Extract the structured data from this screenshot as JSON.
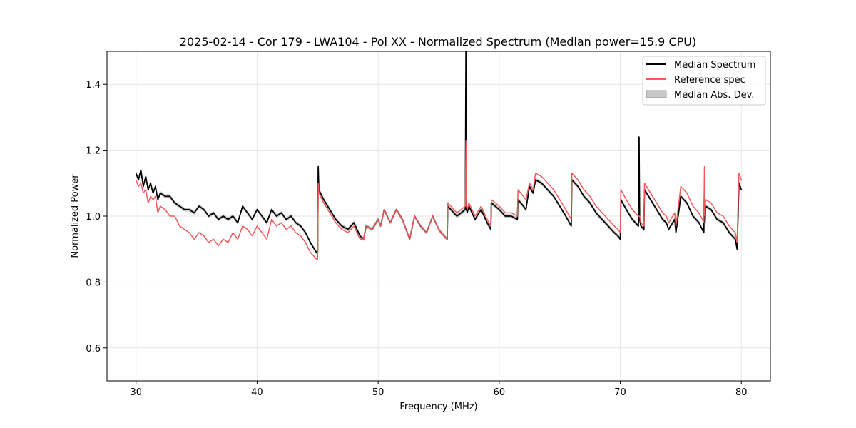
{
  "chart_data": {
    "type": "line",
    "title": "2025-02-14 - Cor 179 - LWA104 - Pol XX - Normalized Spectrum (Median power=15.9 CPU)",
    "xlabel": "Frequency (MHz)",
    "ylabel": "Normalized Power",
    "xlim": [
      27.6,
      82.4
    ],
    "ylim": [
      0.5,
      1.5
    ],
    "grid": true,
    "legend_position": "top-right",
    "xticks": [
      30,
      40,
      50,
      60,
      70,
      80
    ],
    "yticks": [
      0.6,
      0.8,
      1.0,
      1.2,
      1.4
    ],
    "xtick_labels": [
      "30",
      "40",
      "50",
      "60",
      "70",
      "80"
    ],
    "ytick_labels": [
      "0.6",
      "0.8",
      "1.0",
      "1.2",
      "1.4"
    ],
    "mad_width": 0.006,
    "series": [
      {
        "name": "Median Spectrum",
        "color": "#000000",
        "x": [
          30.0,
          30.2,
          30.4,
          30.6,
          30.8,
          31.0,
          31.2,
          31.4,
          31.6,
          31.8,
          32.0,
          32.4,
          32.8,
          33.2,
          33.6,
          34.0,
          34.4,
          34.8,
          35.2,
          35.6,
          36.0,
          36.4,
          36.8,
          37.2,
          37.6,
          38.0,
          38.4,
          38.8,
          39.2,
          39.6,
          40.0,
          40.4,
          40.8,
          41.2,
          41.6,
          42.0,
          42.4,
          42.8,
          43.2,
          43.6,
          44.0,
          44.4,
          44.9,
          45.0,
          45.05,
          45.1,
          45.5,
          46.0,
          46.5,
          47.0,
          47.5,
          48.0,
          48.5,
          48.8,
          49.0,
          49.5,
          50.0,
          50.2,
          50.5,
          51.0,
          51.5,
          52.0,
          52.6,
          53.0,
          53.5,
          54.0,
          54.5,
          55.0,
          55.2,
          55.7,
          55.75,
          56.5,
          57.2,
          57.25,
          57.3,
          57.35,
          57.5,
          58.0,
          58.5,
          59.0,
          59.3,
          59.35,
          60.0,
          60.5,
          61.0,
          61.5,
          61.55,
          62.0,
          62.2,
          62.5,
          62.8,
          63.0,
          63.5,
          64.0,
          64.5,
          65.0,
          65.5,
          65.95,
          66.0,
          66.5,
          67.0,
          67.5,
          68.0,
          68.5,
          69.0,
          69.5,
          69.8,
          70.0,
          70.05,
          70.5,
          71.0,
          71.5,
          71.55,
          71.6,
          71.65,
          71.7,
          71.95,
          72.0,
          72.5,
          73.0,
          73.5,
          73.8,
          74.0,
          74.5,
          74.6,
          75.0,
          75.5,
          76.0,
          76.5,
          76.9,
          76.95,
          77.0,
          77.05,
          77.5,
          78.0,
          78.5,
          79.0,
          79.5,
          79.6,
          79.65,
          79.8,
          80.0
        ],
        "y": [
          1.13,
          1.11,
          1.14,
          1.09,
          1.12,
          1.08,
          1.1,
          1.07,
          1.09,
          1.05,
          1.07,
          1.06,
          1.06,
          1.04,
          1.03,
          1.02,
          1.02,
          1.01,
          1.03,
          1.02,
          1.0,
          1.01,
          0.99,
          1.0,
          0.99,
          1.0,
          0.98,
          1.03,
          1.01,
          0.99,
          1.02,
          1.0,
          0.98,
          1.02,
          1.0,
          1.01,
          0.99,
          1.0,
          0.98,
          0.97,
          0.95,
          0.92,
          0.89,
          0.89,
          1.15,
          1.08,
          1.05,
          1.02,
          0.99,
          0.97,
          0.96,
          0.98,
          0.94,
          0.93,
          0.97,
          0.96,
          0.99,
          0.97,
          1.02,
          0.98,
          1.02,
          0.99,
          0.93,
          1.0,
          0.97,
          0.95,
          1.0,
          0.96,
          0.95,
          0.93,
          1.03,
          1.0,
          1.02,
          1.51,
          1.02,
          1.01,
          1.03,
          0.99,
          1.02,
          0.98,
          0.96,
          1.04,
          1.02,
          1.0,
          1.0,
          0.99,
          1.05,
          1.03,
          1.02,
          1.09,
          1.07,
          1.11,
          1.1,
          1.08,
          1.06,
          1.03,
          1.0,
          0.97,
          1.11,
          1.09,
          1.06,
          1.04,
          1.01,
          0.99,
          0.97,
          0.95,
          0.94,
          0.93,
          1.05,
          1.02,
          0.99,
          0.97,
          1.24,
          0.99,
          0.98,
          0.97,
          0.96,
          1.08,
          1.05,
          1.02,
          0.99,
          0.98,
          0.96,
          0.99,
          0.95,
          1.06,
          1.04,
          1.0,
          0.98,
          0.95,
          1.09,
          0.98,
          1.03,
          1.02,
          0.99,
          0.98,
          0.95,
          0.93,
          0.91,
          0.9,
          1.1,
          1.08
        ]
      },
      {
        "name": "Reference spec",
        "color": "#f05a5a",
        "x": [
          30.0,
          30.2,
          30.4,
          30.6,
          30.8,
          31.0,
          31.2,
          31.4,
          31.6,
          31.8,
          32.0,
          32.4,
          32.8,
          33.2,
          33.6,
          34.0,
          34.4,
          34.8,
          35.2,
          35.6,
          36.0,
          36.4,
          36.8,
          37.2,
          37.6,
          38.0,
          38.4,
          38.8,
          39.2,
          39.6,
          40.0,
          40.4,
          40.8,
          41.2,
          41.6,
          42.0,
          42.4,
          42.8,
          43.2,
          43.6,
          44.0,
          44.4,
          44.9,
          45.0,
          45.05,
          45.1,
          45.5,
          46.0,
          46.5,
          47.0,
          47.5,
          48.0,
          48.5,
          48.8,
          49.0,
          49.5,
          50.0,
          50.2,
          50.5,
          51.0,
          51.5,
          52.0,
          52.6,
          53.0,
          53.5,
          54.0,
          54.5,
          55.0,
          55.2,
          55.7,
          55.75,
          56.5,
          57.2,
          57.25,
          57.3,
          57.35,
          57.5,
          58.0,
          58.5,
          59.0,
          59.3,
          59.35,
          60.0,
          60.5,
          61.0,
          61.5,
          61.55,
          62.0,
          62.2,
          62.5,
          62.8,
          63.0,
          63.5,
          64.0,
          64.5,
          65.0,
          65.5,
          65.95,
          66.0,
          66.5,
          67.0,
          67.5,
          68.0,
          68.5,
          69.0,
          69.5,
          69.8,
          70.0,
          70.05,
          70.5,
          71.0,
          71.5,
          71.55,
          71.6,
          71.65,
          71.7,
          71.95,
          72.0,
          72.5,
          73.0,
          73.5,
          73.8,
          74.0,
          74.5,
          74.6,
          75.0,
          75.5,
          76.0,
          76.5,
          76.9,
          76.95,
          77.0,
          77.05,
          77.5,
          78.0,
          78.5,
          79.0,
          79.5,
          79.6,
          79.65,
          79.8,
          80.0
        ],
        "y": [
          1.11,
          1.09,
          1.1,
          1.07,
          1.08,
          1.04,
          1.06,
          1.05,
          1.06,
          1.01,
          1.03,
          1.02,
          1.0,
          1.0,
          0.97,
          0.96,
          0.95,
          0.93,
          0.95,
          0.94,
          0.92,
          0.93,
          0.91,
          0.93,
          0.92,
          0.95,
          0.93,
          0.97,
          0.96,
          0.94,
          0.97,
          0.95,
          0.93,
          0.99,
          0.97,
          0.98,
          0.96,
          0.97,
          0.95,
          0.94,
          0.92,
          0.89,
          0.87,
          0.87,
          1.1,
          1.07,
          1.04,
          1.01,
          0.98,
          0.96,
          0.95,
          0.97,
          0.93,
          0.93,
          0.97,
          0.96,
          0.99,
          0.97,
          1.02,
          0.98,
          1.02,
          0.99,
          0.93,
          1.0,
          0.97,
          0.95,
          1.0,
          0.96,
          0.95,
          0.93,
          1.04,
          1.01,
          1.03,
          1.23,
          1.03,
          1.02,
          1.04,
          1.0,
          1.03,
          0.99,
          0.97,
          1.05,
          1.03,
          1.01,
          1.01,
          1.0,
          1.08,
          1.06,
          1.05,
          1.1,
          1.08,
          1.13,
          1.12,
          1.1,
          1.08,
          1.05,
          1.02,
          0.99,
          1.13,
          1.11,
          1.08,
          1.06,
          1.03,
          1.01,
          0.99,
          0.97,
          0.96,
          0.95,
          1.08,
          1.05,
          1.02,
          1.0,
          1.0,
          1.0,
          0.99,
          0.98,
          0.97,
          1.1,
          1.07,
          1.04,
          1.01,
          1.0,
          0.98,
          1.01,
          0.97,
          1.09,
          1.07,
          1.03,
          1.01,
          0.98,
          1.15,
          1.0,
          1.05,
          1.04,
          1.01,
          1.0,
          0.97,
          0.95,
          0.93,
          0.92,
          1.13,
          1.11
        ]
      }
    ],
    "band": {
      "name": "Median Abs. Dev.",
      "color": "#b0b0b0"
    }
  }
}
